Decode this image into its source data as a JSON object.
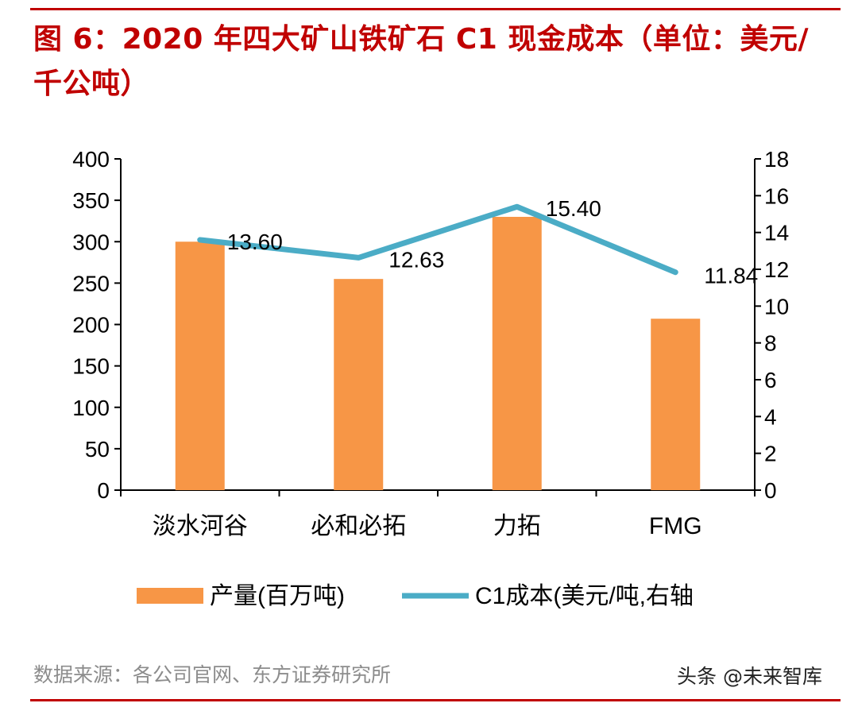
{
  "title": "图 6：2020 年四大矿山铁矿石 C1 现金成本（单位：美元/千公吨）",
  "source": "数据来源：各公司官网、东方证券研究所",
  "watermark": "头条 @未来智库",
  "colors": {
    "title": "#c00000",
    "bar": "#f79646",
    "line": "#4bacc6",
    "axis": "#000000"
  },
  "chart_data": {
    "type": "bar",
    "categories": [
      "淡水河谷",
      "必和必拓",
      "力拓",
      "FMG"
    ],
    "series": [
      {
        "name": "产量(百万吨)",
        "type": "bar",
        "axis": "left",
        "values": [
          300,
          255,
          330,
          207
        ]
      },
      {
        "name": "C1成本(美元/吨,右轴",
        "type": "line",
        "axis": "right",
        "values": [
          13.6,
          12.63,
          15.4,
          11.84
        ]
      }
    ],
    "data_labels": [
      "13.60",
      "12.63",
      "15.40",
      "11.84"
    ],
    "y_left": {
      "min": 0,
      "max": 400,
      "ticks": [
        "0",
        "50",
        "100",
        "150",
        "200",
        "250",
        "300",
        "350",
        "400"
      ]
    },
    "y_right": {
      "min": 0,
      "max": 18,
      "ticks": [
        "0",
        "2",
        "4",
        "6",
        "8",
        "10",
        "12",
        "14",
        "16",
        "18"
      ]
    },
    "grid": false,
    "legend_position": "bottom"
  }
}
